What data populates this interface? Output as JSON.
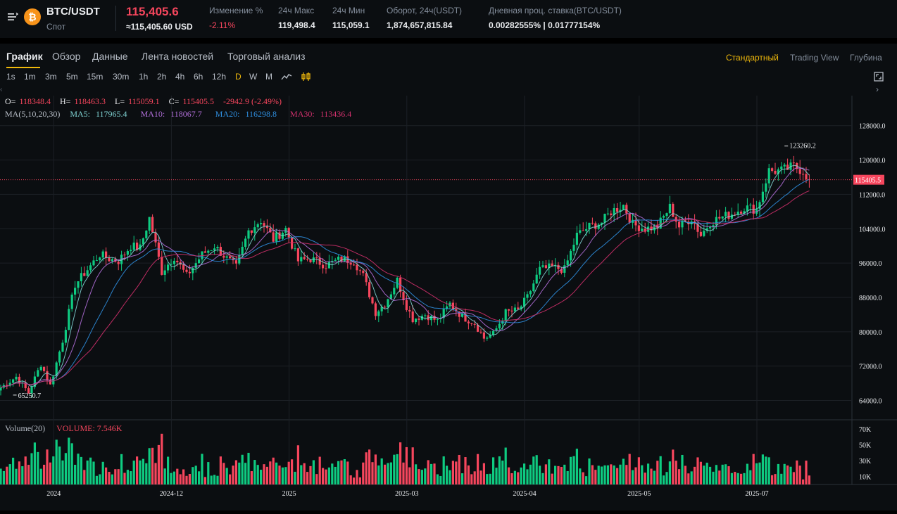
{
  "ticker": {
    "pair": "BTC/USDT",
    "market": "Спот",
    "coin_symbol": "₿",
    "last_price": "115,405.6",
    "last_usd": "≈115,405.60 USD",
    "stats": [
      {
        "label": "Изменение %",
        "value": "-2.11%",
        "color": "red"
      },
      {
        "label": "24ч Макс",
        "value": "119,498.4"
      },
      {
        "label": "24ч Мин",
        "value": "115,059.1"
      },
      {
        "label": "Оборот, 24ч(USDT)",
        "value": "1,874,657,815.84"
      },
      {
        "label": "Дневная проц. ставка(BTC/USDT)",
        "value": "0.00282555% | 0.01777154%"
      }
    ]
  },
  "tabs": [
    "График",
    "Обзор",
    "Данные",
    "Лента новостей",
    "Торговый анализ"
  ],
  "views": [
    "Стандартный",
    "Trading View",
    "Глубина"
  ],
  "intervals": [
    "1s",
    "1m",
    "3m",
    "5m",
    "15m",
    "30m",
    "1h",
    "2h",
    "4h",
    "6h",
    "12h",
    "D",
    "W",
    "M"
  ],
  "active_interval": "D",
  "icons": {
    "menu": "menu-icon",
    "line": "line-chart-icon",
    "candles": "candlestick-icon",
    "expand": "fullscreen-icon"
  },
  "colors": {
    "up": "#0ecb81",
    "down": "#f6465d",
    "accent": "#f0b90b",
    "ma5": "#7fd2d2",
    "ma10": "#b06ed8",
    "ma20": "#2f8fe0",
    "ma30": "#d0306c"
  },
  "legend": {
    "ohlc": [
      {
        "k": "O=",
        "v": "118348.4"
      },
      {
        "k": "H=",
        "v": "118463.3"
      },
      {
        "k": "L=",
        "v": "115059.1"
      },
      {
        "k": "C=",
        "v": "115405.5"
      }
    ],
    "change": "-2942.9 (-2.49%)",
    "ma_label": "MA(5,10,20,30)",
    "ma": [
      {
        "label": "MA5:",
        "value": "117965.4"
      },
      {
        "label": "MA10:",
        "value": "118067.7"
      },
      {
        "label": "MA20:",
        "value": "116298.8"
      },
      {
        "label": "MA30:",
        "value": "113436.4"
      }
    ],
    "volume_label": "Volume(20)",
    "volume_value": "VOLUME: 7.546K"
  },
  "chart_data": {
    "type": "candlestick",
    "interval": "1D",
    "y_ticks": [
      128000,
      120000,
      112000,
      104000,
      96000,
      88000,
      80000,
      72000,
      64000
    ],
    "y_tick_labels": [
      "128000.0",
      "120000.0",
      "112000.0",
      "104000.0",
      "96000.0",
      "88000.0",
      "80000.0",
      "72000.0",
      "64000.0"
    ],
    "ylim": [
      59500,
      135000
    ],
    "current_price": 115405.5,
    "current_price_label": "115405.5",
    "max_marker": {
      "value": 123260.2,
      "label": "123260.2"
    },
    "min_marker": {
      "value": 65250.7,
      "label": "65250.7"
    },
    "x_tick_labels": [
      "2024",
      "2024-12",
      "2025",
      "2025-03",
      "2025-04",
      "2025-05",
      "2025-07"
    ],
    "volume_ticks": [
      "70K",
      "50K",
      "30K",
      "10K"
    ],
    "volume_tick_values": [
      70000,
      50000,
      30000,
      10000
    ],
    "volume_max": 78000,
    "close_path": [
      [
        0,
        67000
      ],
      [
        5,
        69500
      ],
      [
        9,
        65800
      ],
      [
        13,
        72500
      ],
      [
        16,
        67500
      ],
      [
        20,
        78000
      ],
      [
        24,
        91000
      ],
      [
        28,
        94500
      ],
      [
        32,
        98000
      ],
      [
        35,
        97000
      ],
      [
        38,
        96500
      ],
      [
        42,
        100000
      ],
      [
        45,
        99500
      ],
      [
        48,
        106500
      ],
      [
        52,
        94000
      ],
      [
        56,
        97500
      ],
      [
        60,
        93000
      ],
      [
        65,
        98000
      ],
      [
        69,
        100000
      ],
      [
        73,
        97000
      ],
      [
        76,
        95000
      ],
      [
        80,
        103500
      ],
      [
        84,
        106000
      ],
      [
        88,
        101500
      ],
      [
        92,
        104000
      ],
      [
        96,
        96500
      ],
      [
        100,
        97000
      ],
      [
        105,
        95500
      ],
      [
        110,
        97000
      ],
      [
        114,
        96500
      ],
      [
        117,
        93000
      ],
      [
        121,
        84500
      ],
      [
        124,
        86500
      ],
      [
        128,
        92000
      ],
      [
        131,
        86000
      ],
      [
        133,
        83000
      ],
      [
        137,
        84000
      ],
      [
        141,
        82500
      ],
      [
        145,
        86500
      ],
      [
        149,
        83500
      ],
      [
        153,
        82000
      ],
      [
        156,
        78500
      ],
      [
        159,
        79500
      ],
      [
        163,
        84500
      ],
      [
        167,
        85000
      ],
      [
        170,
        88000
      ],
      [
        174,
        94500
      ],
      [
        178,
        95000
      ],
      [
        182,
        94500
      ],
      [
        186,
        102500
      ],
      [
        190,
        104500
      ],
      [
        194,
        105500
      ],
      [
        197,
        108000
      ],
      [
        201,
        109500
      ],
      [
        204,
        105000
      ],
      [
        208,
        104000
      ],
      [
        212,
        104500
      ],
      [
        216,
        109000
      ],
      [
        219,
        104500
      ],
      [
        223,
        106500
      ],
      [
        226,
        102500
      ],
      [
        229,
        105500
      ],
      [
        232,
        106500
      ],
      [
        236,
        107500
      ],
      [
        240,
        109000
      ],
      [
        244,
        108500
      ],
      [
        248,
        117500
      ],
      [
        252,
        117500
      ],
      [
        256,
        118500
      ],
      [
        259,
        117500
      ],
      [
        261,
        115405
      ]
    ],
    "count": 262
  }
}
